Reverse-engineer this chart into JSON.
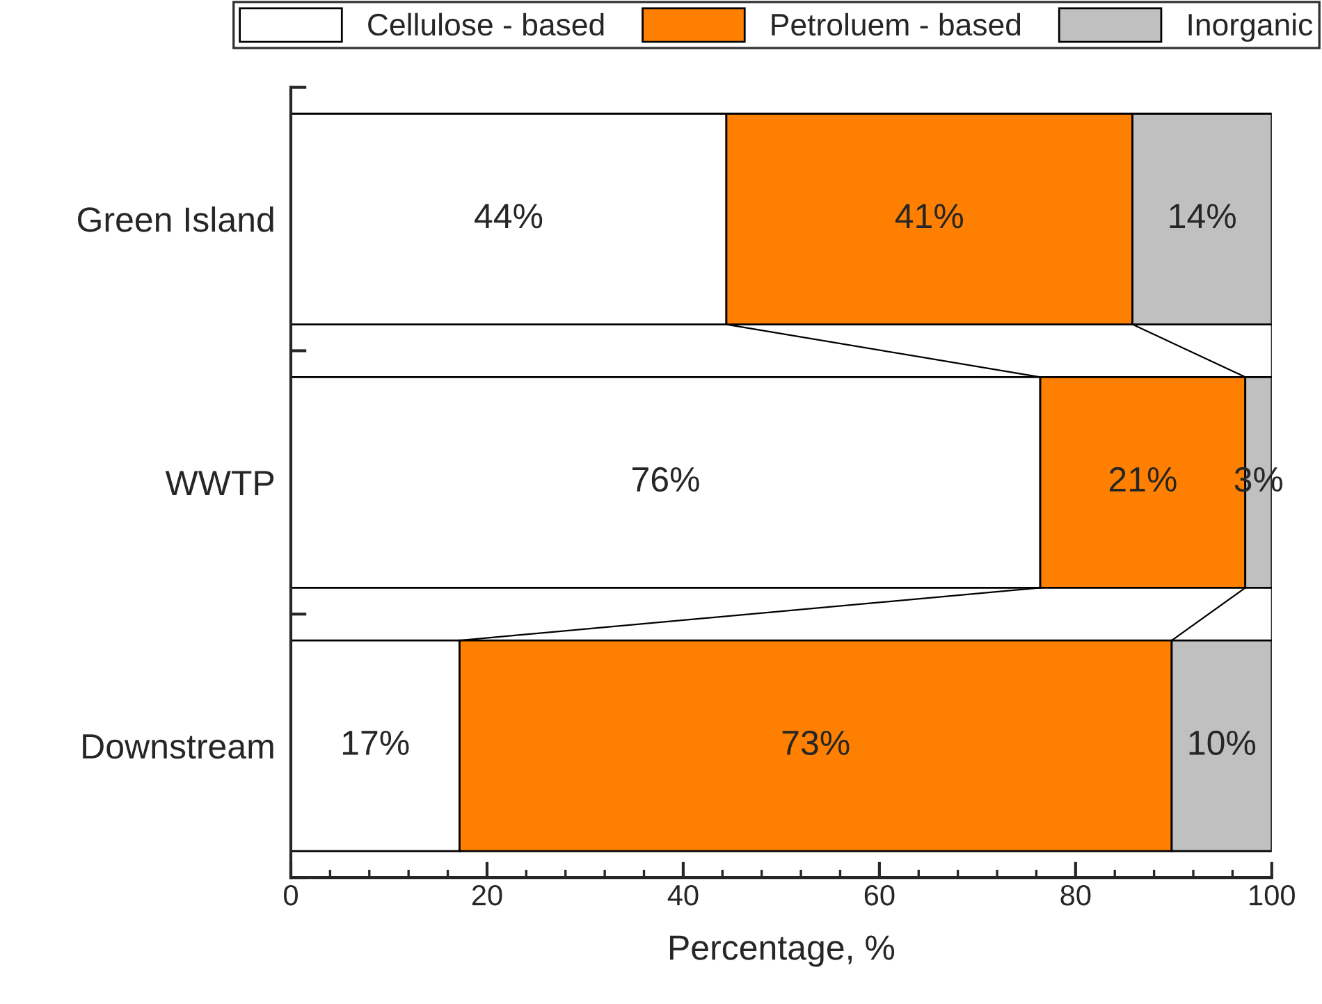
{
  "chart_data": {
    "type": "bar",
    "orientation": "horizontal",
    "stacked": true,
    "categories": [
      "Green Island",
      "WWTP",
      "Downstream"
    ],
    "series": [
      {
        "name": "Cellulose - based",
        "color": "#ffffff",
        "values": [
          44.4,
          76.4,
          17.2
        ],
        "value_labels": [
          "44%",
          "76%",
          "17%"
        ]
      },
      {
        "name": "Petroluem - based",
        "color": "#ff8000",
        "values": [
          41.4,
          20.9,
          72.6
        ],
        "value_labels": [
          "41%",
          "21%",
          "73%"
        ]
      },
      {
        "name": "Inorganic",
        "color": "#c0c0c0",
        "values": [
          14.2,
          2.7,
          10.2
        ],
        "value_labels": [
          "14%",
          "3%",
          "10%"
        ]
      }
    ],
    "xlabel": "Percentage, %",
    "xlim": [
      0,
      100
    ],
    "xticks": [
      0,
      20,
      40,
      60,
      80,
      100
    ],
    "legend": "top right",
    "grid": false
  }
}
